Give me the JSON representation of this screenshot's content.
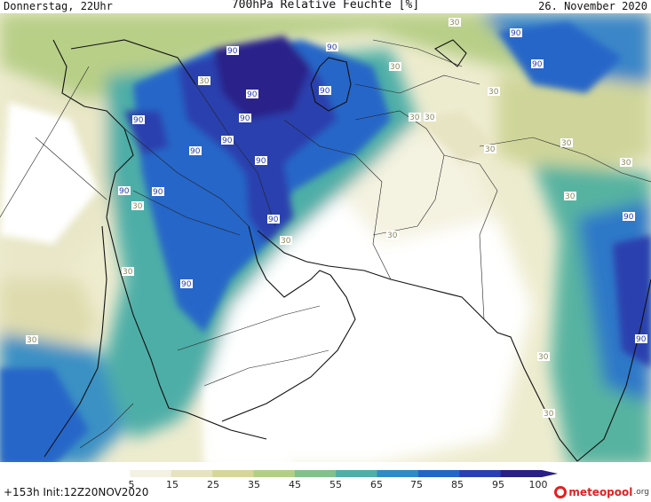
{
  "header": {
    "left": "Donnerstag, 22Uhr",
    "title": "700hPa Relative Feuchte [%]",
    "date": "26. November 2020"
  },
  "footer": {
    "run_info": "+153h Init:12Z20NOV2020",
    "logo_text": "meteopool",
    "logo_tld": ".org"
  },
  "colorbar": {
    "ticks": [
      "5",
      "15",
      "25",
      "35",
      "45",
      "55",
      "65",
      "75",
      "85",
      "95",
      "100"
    ],
    "colors": [
      "#ffffff",
      "#f3f1e2",
      "#e6e3c2",
      "#d6d69a",
      "#b3cf86",
      "#82c08c",
      "#4fafa6",
      "#2e8cc4",
      "#2266c8",
      "#2a40b0",
      "#2a1f86"
    ]
  },
  "map": {
    "region": "Middle East / Arabian Peninsula / South Asia",
    "contour_labels": [
      {
        "text": "90",
        "value": 90
      },
      {
        "text": "90",
        "value": 90
      },
      {
        "text": "90",
        "value": 90
      },
      {
        "text": "90",
        "value": 90
      },
      {
        "text": "90",
        "value": 90
      },
      {
        "text": "90",
        "value": 90
      },
      {
        "text": "90",
        "value": 90
      },
      {
        "text": "90",
        "value": 90
      },
      {
        "text": "90",
        "value": 90
      },
      {
        "text": "90",
        "value": 90
      },
      {
        "text": "90",
        "value": 90
      },
      {
        "text": "90",
        "value": 90
      },
      {
        "text": "90",
        "value": 90
      },
      {
        "text": "90",
        "value": 90
      },
      {
        "text": "90",
        "value": 90
      },
      {
        "text": "90",
        "value": 90
      },
      {
        "text": "90",
        "value": 90
      },
      {
        "text": "30",
        "value": 30
      },
      {
        "text": "30",
        "value": 30
      },
      {
        "text": "30",
        "value": 30
      },
      {
        "text": "30",
        "value": 30
      },
      {
        "text": "30",
        "value": 30
      },
      {
        "text": "30",
        "value": 30
      },
      {
        "text": "30",
        "value": 30
      },
      {
        "text": "30",
        "value": 30
      },
      {
        "text": "30",
        "value": 30
      },
      {
        "text": "30",
        "value": 30
      },
      {
        "text": "30",
        "value": 30
      },
      {
        "text": "30",
        "value": 30
      },
      {
        "text": "30",
        "value": 30
      },
      {
        "text": "30",
        "value": 30
      },
      {
        "text": "30",
        "value": 30
      },
      {
        "text": "30",
        "value": 30
      },
      {
        "text": "30",
        "value": 30
      }
    ]
  }
}
